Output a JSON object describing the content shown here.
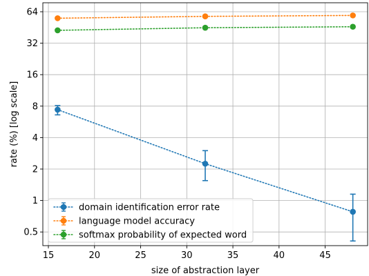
{
  "chart_data": {
    "type": "line",
    "xlabel": "size of abstraction layer",
    "ylabel": "rate (%) [log scale]",
    "x_scale": "linear",
    "y_scale": "log2",
    "xlim": [
      14.4,
      49.6
    ],
    "ylim": [
      0.37,
      78
    ],
    "x_ticks": [
      15,
      20,
      25,
      30,
      35,
      40,
      45
    ],
    "x_tick_labels": [
      "15",
      "20",
      "25",
      "30",
      "35",
      "40",
      "45"
    ],
    "y_ticks": [
      0.5,
      1,
      2,
      4,
      8,
      16,
      32,
      64
    ],
    "y_tick_labels": [
      "0.5",
      "1",
      "2",
      "4",
      "8",
      "16",
      "32",
      "64"
    ],
    "grid": true,
    "legend_position": "lower-left",
    "series": [
      {
        "name": "domain identification error rate",
        "color": "#1f77b4",
        "x": [
          16,
          32,
          48
        ],
        "y": [
          7.4,
          2.25,
          0.78
        ],
        "yerr_low": [
          6.6,
          1.55,
          0.41
        ],
        "yerr_high": [
          8.1,
          3.0,
          1.15
        ]
      },
      {
        "name": "language model accuracy",
        "color": "#ff7f0e",
        "x": [
          16,
          32,
          48
        ],
        "y": [
          55.5,
          57.8,
          59.0
        ],
        "yerr_low": [
          55.5,
          57.8,
          59.0
        ],
        "yerr_high": [
          55.5,
          57.8,
          59.0
        ]
      },
      {
        "name": "softmax probability of expected word",
        "color": "#2ca02c",
        "x": [
          16,
          32,
          48
        ],
        "y": [
          42.5,
          45.0,
          46.0
        ],
        "yerr_low": [
          42.5,
          45.0,
          46.0
        ],
        "yerr_high": [
          42.5,
          45.0,
          46.0
        ]
      }
    ]
  }
}
